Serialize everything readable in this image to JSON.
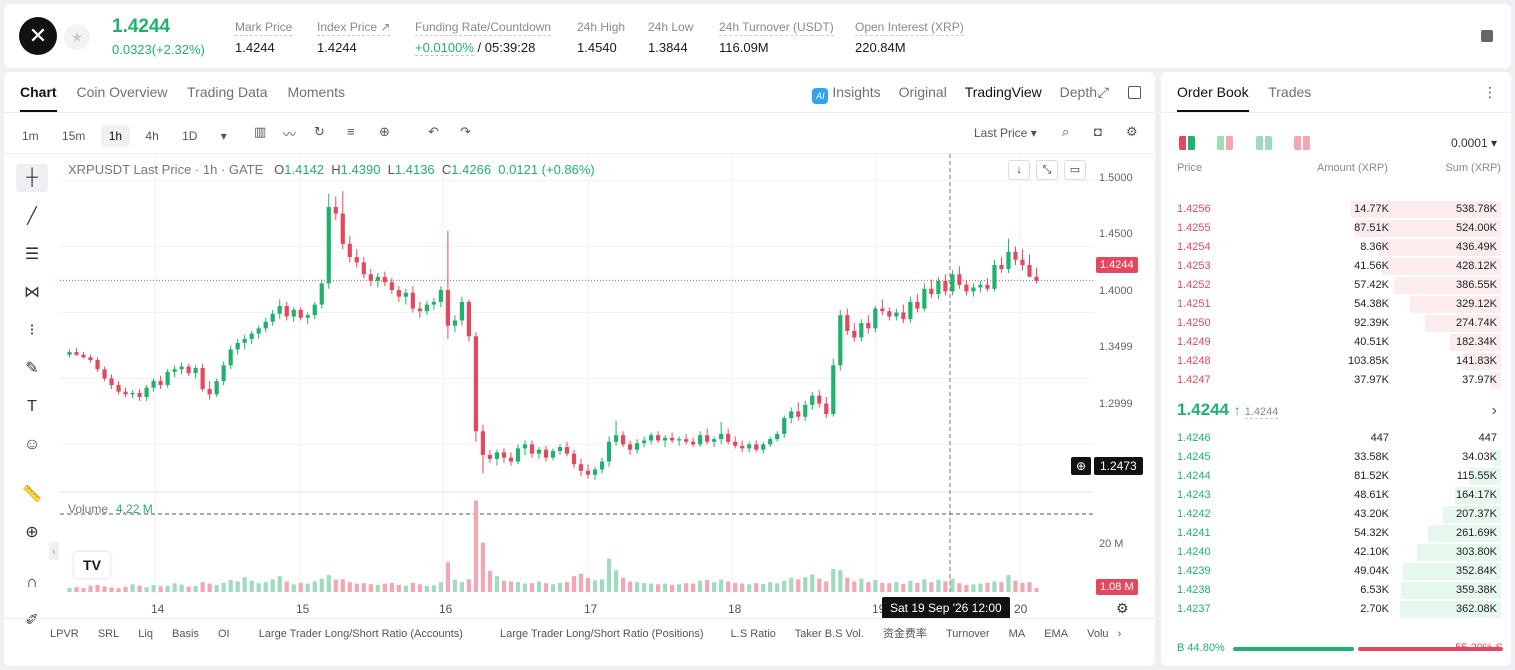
{
  "header": {
    "logo": "✕",
    "price": "1.4244",
    "change": "0.0323(+2.32%)",
    "stats": [
      {
        "label": "Mark Price",
        "value": "1.4244"
      },
      {
        "label": "Index Price ↗",
        "value": "1.4244"
      },
      {
        "label": "Funding Rate/Countdown",
        "value_green": "+0.0100%",
        "value": " / 05:39:28"
      },
      {
        "label": "24h High",
        "value": "1.4540"
      },
      {
        "label": "24h Low",
        "value": "1.3844"
      },
      {
        "label": "24h Turnover (USDT)",
        "value": "116.09M"
      },
      {
        "label": "Open Interest (XRP)",
        "value": "220.84M"
      }
    ]
  },
  "chart_tabs": [
    "Chart",
    "Coin Overview",
    "Trading Data",
    "Moments"
  ],
  "chart_views": {
    "insights": "Insights",
    "original": "Original",
    "tradingview": "TradingView",
    "depth": "Depth"
  },
  "timeframes": [
    "1m",
    "15m",
    "1h",
    "4h",
    "1D"
  ],
  "selected_timeframe": "1h",
  "price_type": "Last Price",
  "legend": {
    "symbol": "XRPUSDT Last Price · 1h · GATE",
    "o": "O",
    "o_val": "1.4142",
    "h": "H",
    "h_val": "1.4390",
    "l": "L",
    "l_val": "1.4136",
    "c": "C",
    "c_val": "1.4266",
    "chg": "0.0121 (+0.86%)"
  },
  "volume_legend": {
    "label": "Volume",
    "value": "4.22 M"
  },
  "price_axis": [
    "1.5000",
    "1.4500",
    "1.4000",
    "1.3499",
    "1.2999"
  ],
  "current_price_tag": "1.4244",
  "crosshair_price_tag": "1.2473",
  "volume_axis": "20 M",
  "volume_tag": "1.08 M",
  "x_labels": [
    "14",
    "15",
    "16",
    "17",
    "18",
    "19",
    "20"
  ],
  "crosshair_time": "Sat 19 Sep '26   12:00",
  "indicators": [
    "LPVR",
    "SRL",
    "Liq",
    "Basis",
    "OI",
    "Large Trader Long/Short Ratio (Accounts)",
    "Large Trader Long/Short Ratio (Positions)",
    "L.S Ratio",
    "Taker B.S Vol.",
    "资金费率",
    "Turnover",
    "MA",
    "EMA",
    "Volu"
  ],
  "chart_data": {
    "type": "candlestick",
    "ylim": [
      1.27,
      1.505
    ],
    "candles": [
      [
        1.368,
        1.372,
        1.366,
        1.37
      ],
      [
        1.37,
        1.373,
        1.367,
        1.368
      ],
      [
        1.368,
        1.37,
        1.365,
        1.366
      ],
      [
        1.366,
        1.368,
        1.362,
        1.364
      ],
      [
        1.364,
        1.366,
        1.355,
        1.357
      ],
      [
        1.357,
        1.359,
        1.348,
        1.35
      ],
      [
        1.35,
        1.353,
        1.342,
        1.345
      ],
      [
        1.345,
        1.348,
        1.338,
        1.34
      ],
      [
        1.34,
        1.343,
        1.336,
        1.338
      ],
      [
        1.338,
        1.341,
        1.335,
        1.339
      ],
      [
        1.339,
        1.342,
        1.333,
        1.336
      ],
      [
        1.336,
        1.345,
        1.333,
        1.343
      ],
      [
        1.343,
        1.35,
        1.34,
        1.348
      ],
      [
        1.348,
        1.352,
        1.342,
        1.345
      ],
      [
        1.345,
        1.357,
        1.343,
        1.355
      ],
      [
        1.355,
        1.36,
        1.351,
        1.357
      ],
      [
        1.357,
        1.362,
        1.353,
        1.359
      ],
      [
        1.359,
        1.361,
        1.352,
        1.354
      ],
      [
        1.354,
        1.36,
        1.35,
        1.358
      ],
      [
        1.358,
        1.361,
        1.34,
        1.342
      ],
      [
        1.342,
        1.348,
        1.334,
        1.338
      ],
      [
        1.338,
        1.35,
        1.336,
        1.348
      ],
      [
        1.348,
        1.363,
        1.345,
        1.36
      ],
      [
        1.36,
        1.375,
        1.357,
        1.372
      ],
      [
        1.372,
        1.38,
        1.368,
        1.377
      ],
      [
        1.377,
        1.383,
        1.372,
        1.38
      ],
      [
        1.38,
        1.386,
        1.376,
        1.384
      ],
      [
        1.384,
        1.39,
        1.38,
        1.388
      ],
      [
        1.388,
        1.396,
        1.385,
        1.393
      ],
      [
        1.393,
        1.402,
        1.39,
        1.399
      ],
      [
        1.399,
        1.41,
        1.395,
        1.405
      ],
      [
        1.405,
        1.408,
        1.394,
        1.397
      ],
      [
        1.397,
        1.404,
        1.393,
        1.402
      ],
      [
        1.402,
        1.404,
        1.394,
        1.396
      ],
      [
        1.396,
        1.4,
        1.391,
        1.398
      ],
      [
        1.398,
        1.408,
        1.395,
        1.406
      ],
      [
        1.406,
        1.425,
        1.403,
        1.422
      ],
      [
        1.422,
        1.49,
        1.418,
        1.48
      ],
      [
        1.48,
        1.488,
        1.47,
        1.475
      ],
      [
        1.475,
        1.492,
        1.448,
        1.452
      ],
      [
        1.452,
        1.458,
        1.438,
        1.442
      ],
      [
        1.442,
        1.448,
        1.434,
        1.438
      ],
      [
        1.438,
        1.442,
        1.426,
        1.429
      ],
      [
        1.429,
        1.433,
        1.42,
        1.424
      ],
      [
        1.424,
        1.43,
        1.419,
        1.427
      ],
      [
        1.427,
        1.431,
        1.42,
        1.423
      ],
      [
        1.423,
        1.426,
        1.414,
        1.417
      ],
      [
        1.417,
        1.42,
        1.408,
        1.412
      ],
      [
        1.412,
        1.418,
        1.406,
        1.415
      ],
      [
        1.415,
        1.42,
        1.4,
        1.403
      ],
      [
        1.403,
        1.408,
        1.396,
        1.401
      ],
      [
        1.401,
        1.409,
        1.398,
        1.406
      ],
      [
        1.406,
        1.411,
        1.402,
        1.408
      ],
      [
        1.408,
        1.42,
        1.404,
        1.417
      ],
      [
        1.417,
        1.462,
        1.38,
        1.39
      ],
      [
        1.39,
        1.398,
        1.385,
        1.394
      ],
      [
        1.394,
        1.412,
        1.39,
        1.408
      ],
      [
        1.408,
        1.41,
        1.378,
        1.382
      ],
      [
        1.382,
        1.385,
        1.302,
        1.31
      ],
      [
        1.31,
        1.315,
        1.278,
        1.292
      ],
      [
        1.292,
        1.296,
        1.286,
        1.289
      ],
      [
        1.289,
        1.296,
        1.284,
        1.294
      ],
      [
        1.294,
        1.297,
        1.286,
        1.29
      ],
      [
        1.29,
        1.294,
        1.284,
        1.287
      ],
      [
        1.287,
        1.3,
        1.285,
        1.297
      ],
      [
        1.297,
        1.303,
        1.292,
        1.3
      ],
      [
        1.3,
        1.303,
        1.29,
        1.293
      ],
      [
        1.293,
        1.298,
        1.289,
        1.296
      ],
      [
        1.296,
        1.299,
        1.287,
        1.29
      ],
      [
        1.29,
        1.297,
        1.288,
        1.295
      ],
      [
        1.295,
        1.3,
        1.292,
        1.298
      ],
      [
        1.298,
        1.302,
        1.291,
        1.293
      ],
      [
        1.293,
        1.296,
        1.282,
        1.285
      ],
      [
        1.285,
        1.289,
        1.276,
        1.28
      ],
      [
        1.28,
        1.285,
        1.274,
        1.277
      ],
      [
        1.277,
        1.283,
        1.273,
        1.281
      ],
      [
        1.281,
        1.29,
        1.278,
        1.287
      ],
      [
        1.287,
        1.306,
        1.283,
        1.302
      ],
      [
        1.302,
        1.318,
        1.299,
        1.307
      ],
      [
        1.307,
        1.31,
        1.298,
        1.3
      ],
      [
        1.3,
        1.303,
        1.292,
        1.296
      ],
      [
        1.296,
        1.304,
        1.293,
        1.301
      ],
      [
        1.301,
        1.306,
        1.298,
        1.303
      ],
      [
        1.303,
        1.309,
        1.3,
        1.307
      ],
      [
        1.307,
        1.31,
        1.301,
        1.303
      ],
      [
        1.303,
        1.307,
        1.298,
        1.305
      ],
      [
        1.305,
        1.309,
        1.301,
        1.303
      ],
      [
        1.303,
        1.306,
        1.299,
        1.304
      ],
      [
        1.304,
        1.308,
        1.3,
        1.302
      ],
      [
        1.302,
        1.305,
        1.298,
        1.3
      ],
      [
        1.3,
        1.31,
        1.298,
        1.307
      ],
      [
        1.307,
        1.312,
        1.3,
        1.302
      ],
      [
        1.302,
        1.306,
        1.298,
        1.304
      ],
      [
        1.304,
        1.317,
        1.3,
        1.308
      ],
      [
        1.308,
        1.312,
        1.3,
        1.302
      ],
      [
        1.302,
        1.306,
        1.297,
        1.299
      ],
      [
        1.299,
        1.303,
        1.294,
        1.297
      ],
      [
        1.297,
        1.302,
        1.294,
        1.3
      ],
      [
        1.3,
        1.303,
        1.294,
        1.296
      ],
      [
        1.296,
        1.302,
        1.293,
        1.3
      ],
      [
        1.3,
        1.306,
        1.298,
        1.304
      ],
      [
        1.304,
        1.31,
        1.302,
        1.308
      ],
      [
        1.308,
        1.322,
        1.305,
        1.32
      ],
      [
        1.32,
        1.328,
        1.316,
        1.325
      ],
      [
        1.325,
        1.332,
        1.318,
        1.321
      ],
      [
        1.321,
        1.333,
        1.318,
        1.33
      ],
      [
        1.33,
        1.34,
        1.326,
        1.337
      ],
      [
        1.337,
        1.341,
        1.328,
        1.331
      ],
      [
        1.331,
        1.336,
        1.32,
        1.323
      ],
      [
        1.323,
        1.365,
        1.321,
        1.36
      ],
      [
        1.36,
        1.402,
        1.356,
        1.398
      ],
      [
        1.398,
        1.403,
        1.383,
        1.386
      ],
      [
        1.386,
        1.392,
        1.378,
        1.381
      ],
      [
        1.381,
        1.395,
        1.378,
        1.392
      ],
      [
        1.392,
        1.398,
        1.384,
        1.388
      ],
      [
        1.388,
        1.405,
        1.385,
        1.403
      ],
      [
        1.403,
        1.41,
        1.398,
        1.401
      ],
      [
        1.401,
        1.404,
        1.394,
        1.397
      ],
      [
        1.397,
        1.403,
        1.394,
        1.4
      ],
      [
        1.4,
        1.406,
        1.392,
        1.395
      ],
      [
        1.395,
        1.412,
        1.392,
        1.408
      ],
      [
        1.408,
        1.414,
        1.4,
        1.403
      ],
      [
        1.403,
        1.422,
        1.401,
        1.418
      ],
      [
        1.418,
        1.425,
        1.411,
        1.414
      ],
      [
        1.414,
        1.427,
        1.41,
        1.424
      ],
      [
        1.424,
        1.429,
        1.413,
        1.416
      ],
      [
        1.416,
        1.432,
        1.413,
        1.429
      ],
      [
        1.429,
        1.435,
        1.418,
        1.421
      ],
      [
        1.421,
        1.424,
        1.413,
        1.416
      ],
      [
        1.416,
        1.422,
        1.412,
        1.419
      ],
      [
        1.419,
        1.424,
        1.415,
        1.421
      ],
      [
        1.421,
        1.426,
        1.416,
        1.418
      ],
      [
        1.418,
        1.44,
        1.416,
        1.436
      ],
      [
        1.436,
        1.442,
        1.43,
        1.433
      ],
      [
        1.433,
        1.456,
        1.43,
        1.446
      ],
      [
        1.446,
        1.45,
        1.436,
        1.44
      ],
      [
        1.44,
        1.448,
        1.432,
        1.436
      ],
      [
        1.436,
        1.444,
        1.428,
        1.427
      ],
      [
        1.427,
        1.434,
        1.422,
        1.424
      ]
    ],
    "volume_ylim": [
      0,
      25
    ],
    "volume_values": [
      1.2,
      1.4,
      1.1,
      1.8,
      2.0,
      1.6,
      1.3,
      1.1,
      1.5,
      2.2,
      1.8,
      1.4,
      2.0,
      1.6,
      1.8,
      2.5,
      2.1,
      1.5,
      1.7,
      2.8,
      2.4,
      2.0,
      2.6,
      3.4,
      3.0,
      4.2,
      3.2,
      2.5,
      2.8,
      3.6,
      4.5,
      3.0,
      2.2,
      2.6,
      2.4,
      3.0,
      3.8,
      4.8,
      3.5,
      3.6,
      2.8,
      2.4,
      2.5,
      2.2,
      2.0,
      2.4,
      2.6,
      2.0,
      1.8,
      2.6,
      2.2,
      1.7,
      1.9,
      2.8,
      8.5,
      3.5,
      2.8,
      3.6,
      26.0,
      14.0,
      6.0,
      4.5,
      3.2,
      3.0,
      2.8,
      2.4,
      2.5,
      3.0,
      2.5,
      2.2,
      2.6,
      2.8,
      4.5,
      5.2,
      4.0,
      3.3,
      3.6,
      9.5,
      6.2,
      4.0,
      3.0,
      2.8,
      2.5,
      2.4,
      2.2,
      2.4,
      2.0,
      2.2,
      2.5,
      2.4,
      3.2,
      3.4,
      2.8,
      3.5,
      3.0,
      2.6,
      2.4,
      2.2,
      2.5,
      2.3,
      2.8,
      2.5,
      3.2,
      4.0,
      3.6,
      4.2,
      5.0,
      3.8,
      3.0,
      6.5,
      6.2,
      4.0,
      3.0,
      3.8,
      2.8,
      3.4,
      2.6,
      2.5,
      2.8,
      2.3,
      3.2,
      2.6,
      3.6,
      2.8,
      3.5,
      3.0,
      3.8,
      2.5,
      2.0,
      2.2,
      2.4,
      2.6,
      3.0,
      2.8,
      4.8,
      3.2,
      2.6,
      2.8,
      1.1
    ]
  },
  "orderbook": {
    "tabs": [
      "Order Book",
      "Trades"
    ],
    "precision": "0.0001",
    "headers": {
      "price": "Price",
      "amount": "Amount (XRP)",
      "sum": "Sum (XRP)"
    },
    "asks": [
      {
        "price": "1.4256",
        "amount": "14.77K",
        "sum": "538.78K",
        "sum_val": 538.78,
        "amt_val": 14.77
      },
      {
        "price": "1.4255",
        "amount": "87.51K",
        "sum": "524.00K",
        "sum_val": 524.0,
        "amt_val": 87.51
      },
      {
        "price": "1.4254",
        "amount": "8.36K",
        "sum": "436.49K",
        "sum_val": 436.49,
        "amt_val": 8.36
      },
      {
        "price": "1.4253",
        "amount": "41.56K",
        "sum": "428.12K",
        "sum_val": 428.12,
        "amt_val": 41.56
      },
      {
        "price": "1.4252",
        "amount": "57.42K",
        "sum": "386.55K",
        "sum_val": 386.55,
        "amt_val": 57.42
      },
      {
        "price": "1.4251",
        "amount": "54.38K",
        "sum": "329.12K",
        "sum_val": 329.12,
        "amt_val": 54.38
      },
      {
        "price": "1.4250",
        "amount": "92.39K",
        "sum": "274.74K",
        "sum_val": 274.74,
        "amt_val": 92.39
      },
      {
        "price": "1.4249",
        "amount": "40.51K",
        "sum": "182.34K",
        "sum_val": 182.34,
        "amt_val": 40.51
      },
      {
        "price": "1.4248",
        "amount": "103.85K",
        "sum": "141.83K",
        "sum_val": 141.83,
        "amt_val": 103.85
      },
      {
        "price": "1.4247",
        "amount": "37.97K",
        "sum": "37.97K",
        "sum_val": 37.97,
        "amt_val": 37.97
      }
    ],
    "mid_price": "1.4244",
    "mid_arrow": "↑",
    "mid_mark": "1.4244",
    "bids": [
      {
        "price": "1.4246",
        "amount": "447",
        "sum": "447",
        "sum_val": 0.447,
        "amt_val": 0.447
      },
      {
        "price": "1.4245",
        "amount": "33.58K",
        "sum": "34.03K",
        "sum_val": 34.03,
        "amt_val": 33.58
      },
      {
        "price": "1.4244",
        "amount": "81.52K",
        "sum": "115.55K",
        "sum_val": 115.55,
        "amt_val": 81.52
      },
      {
        "price": "1.4243",
        "amount": "48.61K",
        "sum": "164.17K",
        "sum_val": 164.17,
        "amt_val": 48.61
      },
      {
        "price": "1.4242",
        "amount": "43.20K",
        "sum": "207.37K",
        "sum_val": 207.37,
        "amt_val": 43.2
      },
      {
        "price": "1.4241",
        "amount": "54.32K",
        "sum": "261.69K",
        "sum_val": 261.69,
        "amt_val": 54.32
      },
      {
        "price": "1.4240",
        "amount": "42.10K",
        "sum": "303.80K",
        "sum_val": 303.8,
        "amt_val": 42.1
      },
      {
        "price": "1.4239",
        "amount": "49.04K",
        "sum": "352.84K",
        "sum_val": 352.84,
        "amt_val": 49.04
      },
      {
        "price": "1.4238",
        "amount": "6.53K",
        "sum": "359.38K",
        "sum_val": 359.38,
        "amt_val": 6.53
      },
      {
        "price": "1.4237",
        "amount": "2.70K",
        "sum": "362.08K",
        "sum_val": 362.08,
        "amt_val": 2.7
      }
    ],
    "buy_ratio": "44.80%",
    "sell_ratio": "55.20%",
    "buy_ratio_val": 44.8,
    "b_label": "B",
    "s_label": "S"
  },
  "colors": {
    "up": "#20b26c",
    "down": "#e5485d",
    "vol_up": "#9fdcbf",
    "vol_down": "#f4a7b2"
  }
}
